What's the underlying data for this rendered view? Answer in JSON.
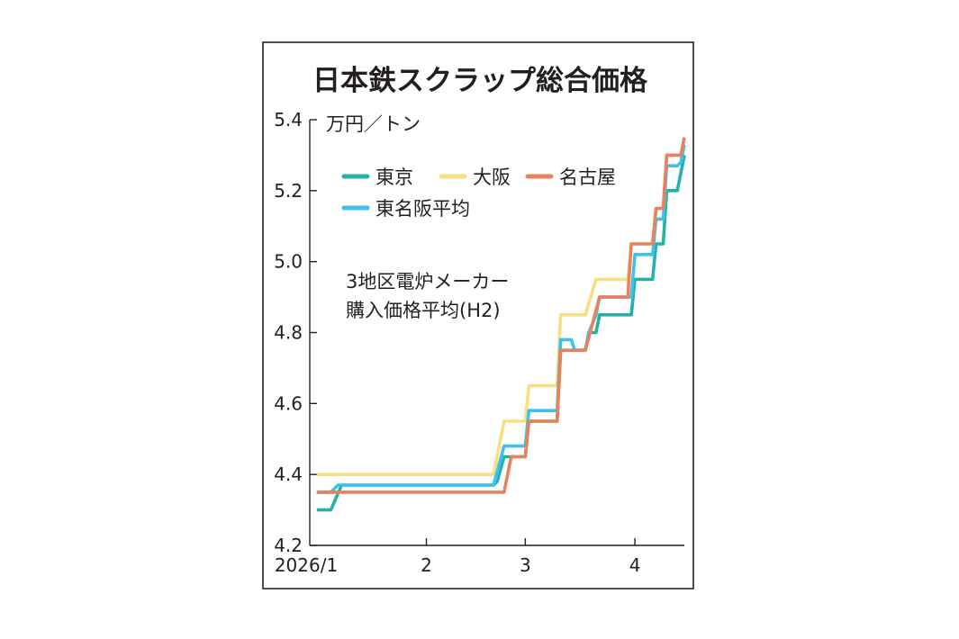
{
  "chart_data": {
    "type": "line",
    "step": true,
    "title": "日本鉄スクラップ総合価格",
    "unit": "万円／トン",
    "annotation": [
      "3地区電炉メーカー",
      "購入価格平均(H2)"
    ],
    "x_tick_labels": [
      "2026/1",
      "2",
      "3",
      "4"
    ],
    "x_ticks": [
      "2026-01-01",
      "2026-02-01",
      "2026-03-01",
      "2026-04-01"
    ],
    "xlim": [
      "2025-12-30",
      "2026-04-15"
    ],
    "ylim": [
      4.2,
      5.4
    ],
    "y_ticks": [
      4.2,
      4.4,
      4.6,
      4.8,
      5.0,
      5.2,
      5.4
    ],
    "y_tick_labels": [
      "4.2",
      "4.4",
      "4.6",
      "4.8",
      "5.0",
      "5.2",
      "5.4"
    ],
    "legend_position": "top-left",
    "grid": false,
    "series": [
      {
        "name": "東京",
        "color": "#25b2a6",
        "points": [
          [
            "2026-01-01",
            4.3
          ],
          [
            "2026-01-05",
            4.3
          ],
          [
            "2026-01-08",
            4.37
          ],
          [
            "2026-02-20",
            4.37
          ],
          [
            "2026-02-21",
            4.38
          ],
          [
            "2026-02-23",
            4.45
          ],
          [
            "2026-03-01",
            4.45
          ],
          [
            "2026-03-02",
            4.55
          ],
          [
            "2026-03-10",
            4.55
          ],
          [
            "2026-03-11",
            4.75
          ],
          [
            "2026-03-18",
            4.75
          ],
          [
            "2026-03-19",
            4.8
          ],
          [
            "2026-03-21",
            4.8
          ],
          [
            "2026-03-22",
            4.85
          ],
          [
            "2026-03-31",
            4.85
          ],
          [
            "2026-04-01",
            4.95
          ],
          [
            "2026-04-06",
            4.95
          ],
          [
            "2026-04-07",
            5.05
          ],
          [
            "2026-04-09",
            5.05
          ],
          [
            "2026-04-10",
            5.2
          ],
          [
            "2026-04-13",
            5.2
          ],
          [
            "2026-04-14",
            5.25
          ],
          [
            "2026-04-15",
            5.3
          ]
        ]
      },
      {
        "name": "大阪",
        "color": "#f8df7f",
        "points": [
          [
            "2026-01-01",
            4.4
          ],
          [
            "2026-02-20",
            4.4
          ],
          [
            "2026-02-21",
            4.45
          ],
          [
            "2026-02-23",
            4.55
          ],
          [
            "2026-03-01",
            4.55
          ],
          [
            "2026-03-02",
            4.65
          ],
          [
            "2026-03-10",
            4.65
          ],
          [
            "2026-03-11",
            4.85
          ],
          [
            "2026-03-18",
            4.85
          ],
          [
            "2026-03-21",
            4.95
          ],
          [
            "2026-03-30",
            4.95
          ],
          [
            "2026-03-31",
            5.05
          ],
          [
            "2026-04-06",
            5.05
          ],
          [
            "2026-04-07",
            5.15
          ],
          [
            "2026-04-09",
            5.15
          ],
          [
            "2026-04-10",
            5.3
          ],
          [
            "2026-04-15",
            5.3
          ]
        ]
      },
      {
        "name": "名古屋",
        "color": "#e9815a",
        "points": [
          [
            "2026-01-01",
            4.35
          ],
          [
            "2026-02-23",
            4.35
          ],
          [
            "2026-02-25",
            4.45
          ],
          [
            "2026-03-01",
            4.45
          ],
          [
            "2026-03-02",
            4.55
          ],
          [
            "2026-03-10",
            4.55
          ],
          [
            "2026-03-11",
            4.75
          ],
          [
            "2026-03-18",
            4.75
          ],
          [
            "2026-03-22",
            4.9
          ],
          [
            "2026-03-30",
            4.9
          ],
          [
            "2026-03-31",
            5.05
          ],
          [
            "2026-04-06",
            5.05
          ],
          [
            "2026-04-07",
            5.15
          ],
          [
            "2026-04-09",
            5.15
          ],
          [
            "2026-04-10",
            5.3
          ],
          [
            "2026-04-14",
            5.3
          ],
          [
            "2026-04-15",
            5.35
          ]
        ]
      },
      {
        "name": "東名阪平均",
        "color": "#3ec1ee",
        "points": [
          [
            "2026-01-01",
            4.35
          ],
          [
            "2026-01-05",
            4.35
          ],
          [
            "2026-01-07",
            4.37
          ],
          [
            "2026-02-20",
            4.37
          ],
          [
            "2026-02-23",
            4.48
          ],
          [
            "2026-03-01",
            4.48
          ],
          [
            "2026-03-02",
            4.58
          ],
          [
            "2026-03-10",
            4.58
          ],
          [
            "2026-03-11",
            4.78
          ],
          [
            "2026-03-14",
            4.78
          ],
          [
            "2026-03-15",
            4.75
          ],
          [
            "2026-03-18",
            4.75
          ],
          [
            "2026-03-19",
            4.8
          ],
          [
            "2026-03-21",
            4.85
          ],
          [
            "2026-03-22",
            4.9
          ],
          [
            "2026-03-31",
            4.9
          ],
          [
            "2026-04-01",
            5.02
          ],
          [
            "2026-04-06",
            5.02
          ],
          [
            "2026-04-07",
            5.12
          ],
          [
            "2026-04-09",
            5.12
          ],
          [
            "2026-04-10",
            5.27
          ],
          [
            "2026-04-13",
            5.27
          ],
          [
            "2026-04-14",
            5.28
          ],
          [
            "2026-04-15",
            5.33
          ]
        ]
      }
    ]
  }
}
